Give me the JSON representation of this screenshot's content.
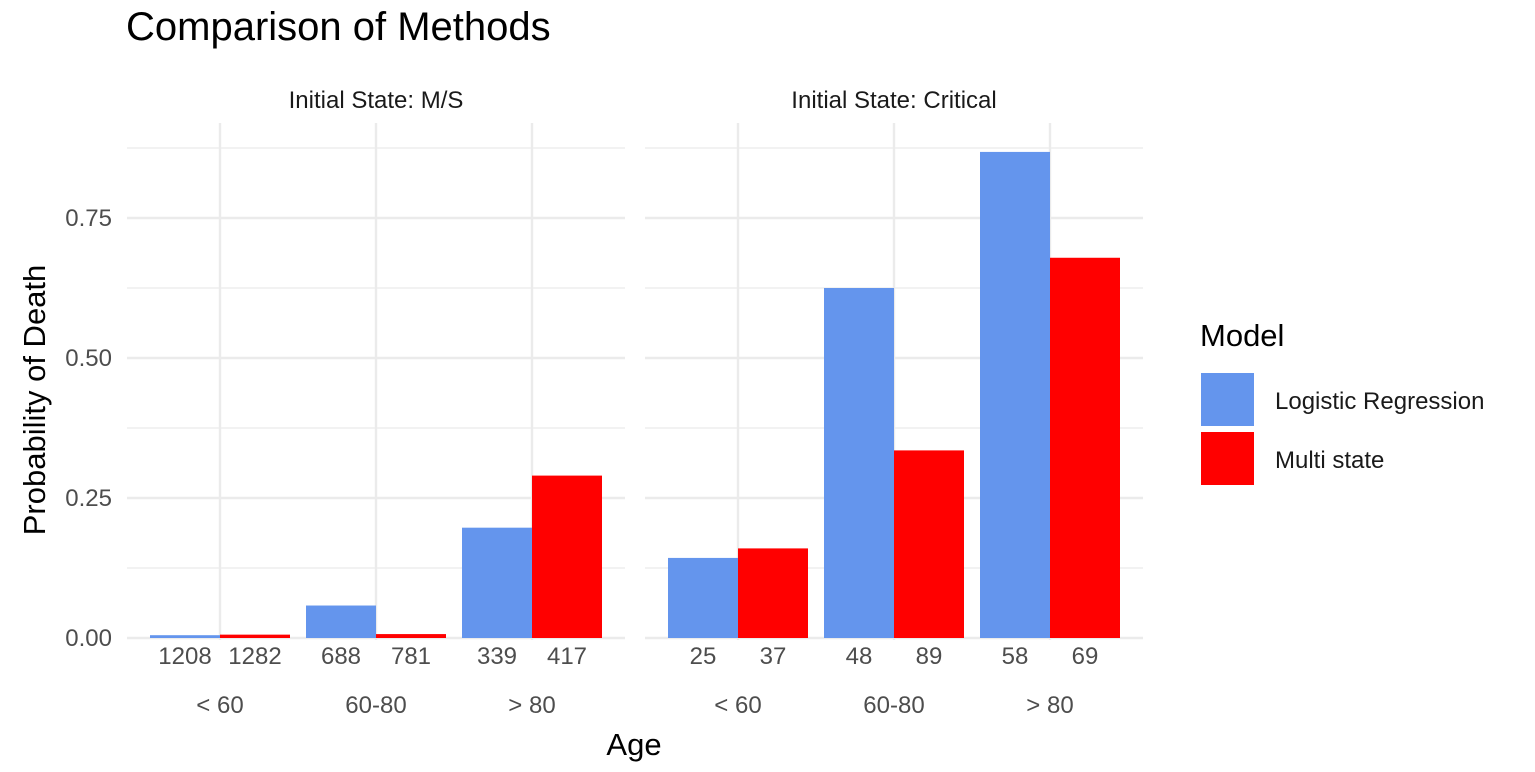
{
  "chart_data": {
    "type": "bar",
    "title": "Comparison of Methods",
    "xlabel": "Age",
    "ylabel": "Probability of Death",
    "ylim": [
      0,
      0.9
    ],
    "yticks": [
      0,
      0.25,
      0.5,
      0.75
    ],
    "ytick_labels": [
      "0.00",
      "0.25",
      "0.50",
      "0.75"
    ],
    "categories": [
      "< 60",
      "60-80",
      "> 80"
    ],
    "legend": {
      "title": "Model",
      "placement": "right",
      "entries": [
        "Logistic Regression",
        "Multi state"
      ]
    },
    "series_colors": [
      "#6495ED",
      "#FF0000"
    ],
    "panels": [
      {
        "strip": "Initial State: M/S",
        "series": [
          {
            "name": "Logistic Regression",
            "values": [
              0.005,
              0.058,
              0.197
            ],
            "counts": [
              "1208",
              "688",
              "339"
            ]
          },
          {
            "name": "Multi state",
            "values": [
              0.006,
              0.007,
              0.29
            ],
            "counts": [
              "1282",
              "781",
              "417"
            ]
          }
        ]
      },
      {
        "strip": "Initial State: Critical",
        "series": [
          {
            "name": "Logistic Regression",
            "values": [
              0.143,
              0.625,
              0.868
            ],
            "counts": [
              "25",
              "48",
              "58"
            ]
          },
          {
            "name": "Multi state",
            "values": [
              0.16,
              0.335,
              0.679
            ],
            "counts": [
              "37",
              "89",
              "69"
            ]
          }
        ]
      }
    ]
  }
}
